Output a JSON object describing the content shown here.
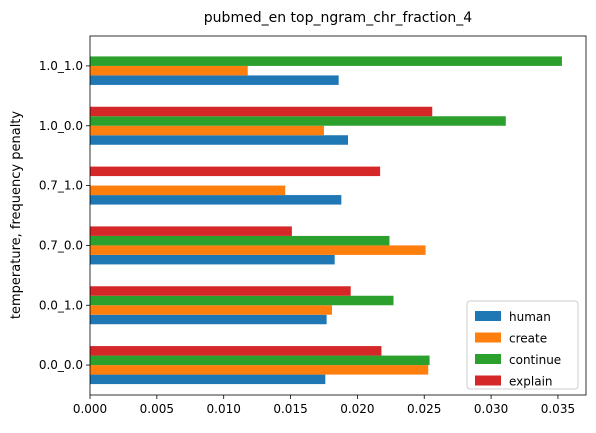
{
  "chart_data": {
    "type": "bar",
    "orientation": "horizontal",
    "title": "pubmed_en top_ngram_chr_fraction_4",
    "xlabel": "",
    "ylabel": "temperature, frequency penalty",
    "categories": [
      "0.0_0.0",
      "0.0_1.0",
      "0.7_0.0",
      "0.7_1.0",
      "1.0_0.0",
      "1.0_1.0"
    ],
    "xlim": [
      0,
      0.0371
    ],
    "xticks": [
      0.0,
      0.005,
      0.01,
      0.015,
      0.02,
      0.025,
      0.03,
      0.035
    ],
    "xtick_labels": [
      "0.000",
      "0.005",
      "0.010",
      "0.015",
      "0.020",
      "0.025",
      "0.030",
      "0.035"
    ],
    "grid": false,
    "legend_position": "bottom-right",
    "series": [
      {
        "name": "human",
        "color": "#1f77b4",
        "values": [
          0.0176,
          0.0177,
          0.0183,
          0.0188,
          0.0193,
          0.0186
        ]
      },
      {
        "name": "create",
        "color": "#ff7f0e",
        "values": [
          0.0253,
          0.0181,
          0.0251,
          0.0146,
          0.0175,
          0.0118
        ]
      },
      {
        "name": "continue",
        "color": "#2ca02c",
        "values": [
          0.0254,
          0.0227,
          0.0224,
          null,
          0.0311,
          0.0353
        ]
      },
      {
        "name": "explain",
        "color": "#d62728",
        "values": [
          0.0218,
          0.0195,
          0.0151,
          0.0217,
          0.0256,
          null
        ]
      }
    ]
  }
}
